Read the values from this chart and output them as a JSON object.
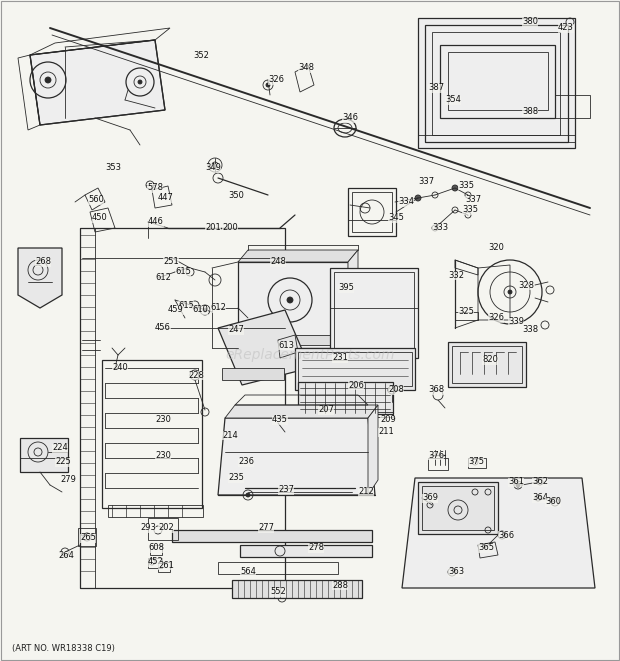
{
  "bg_color": "#f5f5f0",
  "figsize": [
    6.2,
    6.61
  ],
  "dpi": 100,
  "watermark": "eReplacementParts.com",
  "art_no": "(ART NO. WR18338 C19)",
  "lc": "#2a2a2a",
  "lw_thin": 0.6,
  "lw_med": 0.9,
  "lw_thick": 1.4,
  "label_fs": 6.0,
  "labels": [
    [
      "352",
      193,
      55,
      "left"
    ],
    [
      "326",
      268,
      80,
      "left"
    ],
    [
      "348",
      298,
      68,
      "left"
    ],
    [
      "346",
      342,
      118,
      "left"
    ],
    [
      "353",
      105,
      168,
      "left"
    ],
    [
      "349",
      205,
      168,
      "left"
    ],
    [
      "350",
      228,
      195,
      "left"
    ],
    [
      "578",
      147,
      188,
      "left"
    ],
    [
      "447",
      158,
      198,
      "left"
    ],
    [
      "560",
      88,
      200,
      "left"
    ],
    [
      "450",
      92,
      218,
      "left"
    ],
    [
      "446",
      148,
      222,
      "left"
    ],
    [
      "201",
      205,
      228,
      "left"
    ],
    [
      "200",
      222,
      228,
      "left"
    ],
    [
      "268",
      35,
      262,
      "left"
    ],
    [
      "251",
      163,
      262,
      "left"
    ],
    [
      "615",
      175,
      272,
      "left"
    ],
    [
      "615",
      178,
      305,
      "left"
    ],
    [
      "610",
      192,
      310,
      "left"
    ],
    [
      "459",
      168,
      310,
      "left"
    ],
    [
      "456",
      155,
      328,
      "left"
    ],
    [
      "612",
      155,
      278,
      "left"
    ],
    [
      "612",
      210,
      308,
      "left"
    ],
    [
      "248",
      270,
      262,
      "left"
    ],
    [
      "247",
      228,
      330,
      "left"
    ],
    [
      "613",
      278,
      345,
      "left"
    ],
    [
      "395",
      338,
      288,
      "left"
    ],
    [
      "231",
      332,
      358,
      "left"
    ],
    [
      "240",
      112,
      368,
      "left"
    ],
    [
      "228",
      188,
      375,
      "left"
    ],
    [
      "435",
      272,
      420,
      "left"
    ],
    [
      "230",
      155,
      420,
      "left"
    ],
    [
      "214",
      222,
      435,
      "left"
    ],
    [
      "230",
      155,
      455,
      "left"
    ],
    [
      "224",
      52,
      448,
      "left"
    ],
    [
      "225",
      55,
      462,
      "left"
    ],
    [
      "279",
      60,
      480,
      "left"
    ],
    [
      "206",
      348,
      385,
      "left"
    ],
    [
      "208",
      388,
      390,
      "left"
    ],
    [
      "207",
      318,
      410,
      "left"
    ],
    [
      "209",
      380,
      420,
      "left"
    ],
    [
      "211",
      378,
      432,
      "left"
    ],
    [
      "212",
      358,
      492,
      "left"
    ],
    [
      "235",
      228,
      478,
      "left"
    ],
    [
      "237",
      278,
      490,
      "left"
    ],
    [
      "236",
      238,
      462,
      "left"
    ],
    [
      "293",
      140,
      528,
      "left"
    ],
    [
      "202",
      158,
      528,
      "left"
    ],
    [
      "265",
      80,
      538,
      "left"
    ],
    [
      "264",
      58,
      555,
      "left"
    ],
    [
      "608",
      148,
      548,
      "left"
    ],
    [
      "452",
      148,
      562,
      "left"
    ],
    [
      "261",
      158,
      565,
      "left"
    ],
    [
      "277",
      258,
      528,
      "left"
    ],
    [
      "278",
      308,
      548,
      "left"
    ],
    [
      "564",
      240,
      572,
      "left"
    ],
    [
      "552",
      270,
      592,
      "left"
    ],
    [
      "288",
      332,
      585,
      "left"
    ],
    [
      "380",
      522,
      22,
      "left"
    ],
    [
      "423",
      558,
      28,
      "left"
    ],
    [
      "387",
      428,
      88,
      "left"
    ],
    [
      "354",
      445,
      100,
      "left"
    ],
    [
      "388",
      522,
      112,
      "left"
    ],
    [
      "337",
      418,
      182,
      "left"
    ],
    [
      "334",
      398,
      202,
      "left"
    ],
    [
      "345",
      388,
      218,
      "left"
    ],
    [
      "335",
      458,
      185,
      "left"
    ],
    [
      "337",
      465,
      200,
      "left"
    ],
    [
      "335",
      462,
      210,
      "left"
    ],
    [
      "333",
      432,
      228,
      "left"
    ],
    [
      "320",
      488,
      248,
      "left"
    ],
    [
      "332",
      448,
      275,
      "left"
    ],
    [
      "325",
      458,
      312,
      "left"
    ],
    [
      "326",
      488,
      318,
      "left"
    ],
    [
      "339",
      508,
      322,
      "left"
    ],
    [
      "338",
      522,
      330,
      "left"
    ],
    [
      "328",
      518,
      285,
      "left"
    ],
    [
      "820",
      482,
      360,
      "left"
    ],
    [
      "368",
      428,
      390,
      "left"
    ],
    [
      "376",
      428,
      455,
      "left"
    ],
    [
      "375",
      468,
      462,
      "left"
    ],
    [
      "361",
      508,
      482,
      "left"
    ],
    [
      "362",
      532,
      482,
      "left"
    ],
    [
      "369",
      422,
      498,
      "left"
    ],
    [
      "364",
      532,
      498,
      "left"
    ],
    [
      "360",
      545,
      502,
      "left"
    ],
    [
      "366",
      498,
      535,
      "left"
    ],
    [
      "365",
      478,
      548,
      "left"
    ],
    [
      "363",
      448,
      572,
      "left"
    ]
  ]
}
